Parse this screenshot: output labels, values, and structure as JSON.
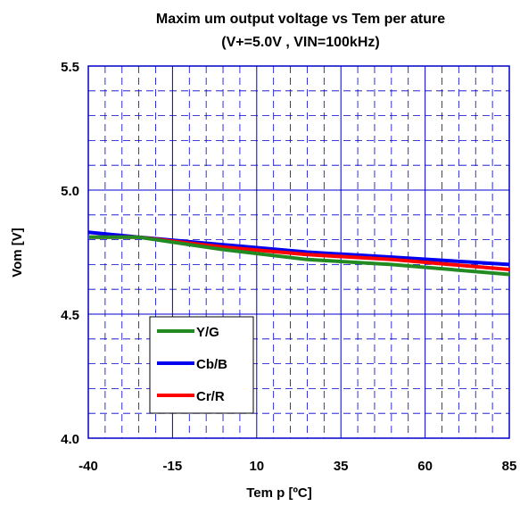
{
  "chart_data": {
    "type": "line",
    "title": "Maxim um output voltage vs Tem per ature",
    "subtitle": "(V+=5.0V , VIN=100kHz)",
    "xlabel": "Tem p [ºC]",
    "ylabel": "Vom [V]",
    "xlim": [
      -40,
      85
    ],
    "ylim": [
      4.0,
      5.5
    ],
    "x_ticks": [
      -40,
      -15,
      10,
      35,
      60,
      85
    ],
    "x_tick_labels": [
      "-40",
      "-15",
      "10",
      "35",
      "60",
      "85"
    ],
    "y_ticks": [
      4.0,
      4.5,
      5.0,
      5.5
    ],
    "y_tick_labels": [
      "4.0",
      "4.5",
      "5.0",
      "5.5"
    ],
    "grid": true,
    "legend_position": "bottom-left",
    "series": [
      {
        "name": "Y/G",
        "color": "#218a21",
        "x": [
          -40,
          -25,
          0,
          25,
          50,
          85
        ],
        "y": [
          4.81,
          4.81,
          4.76,
          4.72,
          4.7,
          4.66
        ]
      },
      {
        "name": "Cb/B",
        "color": "#0000ee",
        "x": [
          -40,
          -25,
          0,
          25,
          50,
          85
        ],
        "y": [
          4.83,
          4.81,
          4.78,
          4.75,
          4.73,
          4.7
        ]
      },
      {
        "name": "Cr/R",
        "color": "#ff0000",
        "x": [
          -40,
          -25,
          0,
          25,
          50,
          85
        ],
        "y": [
          4.81,
          4.81,
          4.77,
          4.74,
          4.72,
          4.68
        ]
      }
    ]
  }
}
